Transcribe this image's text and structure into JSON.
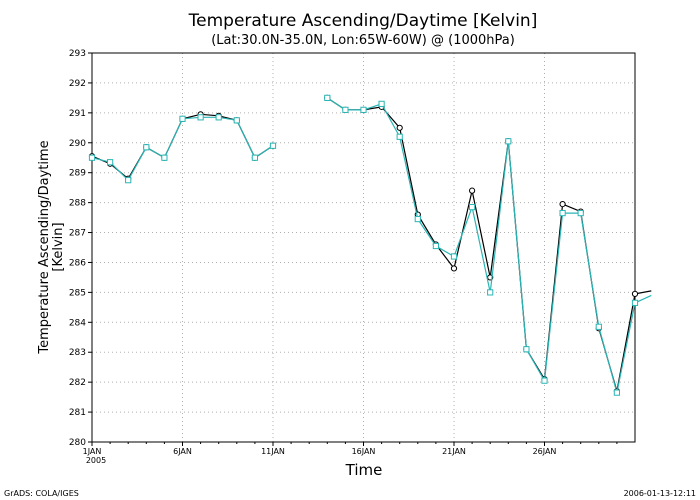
{
  "chart_data": {
    "type": "line",
    "title": "Temperature Ascending/Daytime [Kelvin]",
    "subtitle": "(Lat:30.0N-35.0N, Lon:65W-60W) @ (1000hPa)",
    "xlabel": "Time",
    "ylabel_line1": "Temperature Ascending/Daytime",
    "ylabel_line2": "[Kelvin]",
    "ylim": [
      280,
      293
    ],
    "yticks": [
      "280",
      "281",
      "282",
      "283",
      "284",
      "285",
      "286",
      "287",
      "288",
      "289",
      "290",
      "291",
      "292",
      "293"
    ],
    "xlim": [
      1,
      31
    ],
    "xticks": [
      {
        "x": 1,
        "label": "1JAN",
        "sublabel": "2005"
      },
      {
        "x": 6,
        "label": "6JAN",
        "sublabel": ""
      },
      {
        "x": 11,
        "label": "11JAN",
        "sublabel": ""
      },
      {
        "x": 16,
        "label": "16JAN",
        "sublabel": ""
      },
      {
        "x": 21,
        "label": "21JAN",
        "sublabel": ""
      },
      {
        "x": 26,
        "label": "26JAN",
        "sublabel": ""
      }
    ],
    "grid": true,
    "colors": {
      "series_black": "#000000",
      "series_cyan": "#2ab5b5",
      "grid": "#b0b0b0"
    },
    "series": [
      {
        "marker": "circle",
        "segments": [
          [
            [
              1,
              289.55
            ],
            [
              2,
              289.3
            ],
            [
              3,
              288.8
            ],
            [
              4,
              289.85
            ],
            [
              5,
              289.5
            ],
            [
              6,
              290.8
            ],
            [
              7,
              290.95
            ],
            [
              8,
              290.9
            ],
            [
              9,
              290.75
            ],
            [
              10,
              289.5
            ],
            [
              11,
              289.9
            ]
          ],
          [
            [
              14,
              291.5
            ],
            [
              15,
              291.1
            ],
            [
              16,
              291.1
            ],
            [
              17,
              291.2
            ],
            [
              18,
              290.5
            ],
            [
              19,
              287.6
            ],
            [
              20,
              286.6
            ],
            [
              21,
              285.8
            ],
            [
              22,
              288.4
            ],
            [
              23,
              285.5
            ],
            [
              24,
              290.05
            ],
            [
              25,
              283.1
            ],
            [
              26,
              282.1
            ],
            [
              27,
              287.95
            ],
            [
              28,
              287.7
            ],
            [
              29,
              283.8
            ],
            [
              30,
              281.7
            ],
            [
              31,
              284.95
            ],
            [
              31.9,
              285.05
            ]
          ]
        ]
      },
      {
        "marker": "square",
        "segments": [
          [
            [
              1,
              289.5
            ],
            [
              2,
              289.35
            ],
            [
              3,
              288.75
            ],
            [
              4,
              289.85
            ],
            [
              5,
              289.5
            ],
            [
              6,
              290.8
            ],
            [
              7,
              290.85
            ],
            [
              8,
              290.85
            ],
            [
              9,
              290.75
            ],
            [
              10,
              289.5
            ],
            [
              11,
              289.9
            ]
          ],
          [
            [
              14,
              291.5
            ],
            [
              15,
              291.1
            ],
            [
              16,
              291.1
            ],
            [
              17,
              291.3
            ],
            [
              18,
              290.2
            ],
            [
              19,
              287.45
            ],
            [
              20,
              286.55
            ],
            [
              21,
              286.2
            ],
            [
              22,
              287.85
            ],
            [
              23,
              285.0
            ],
            [
              24,
              290.05
            ],
            [
              25,
              283.1
            ],
            [
              26,
              282.05
            ],
            [
              27,
              287.65
            ],
            [
              28,
              287.65
            ],
            [
              29,
              283.85
            ],
            [
              30,
              281.65
            ],
            [
              31,
              284.65
            ],
            [
              31.9,
              284.9
            ]
          ]
        ]
      }
    ]
  },
  "footer": {
    "left": "GrADS: COLA/IGES",
    "right": "2006-01-13-12:11"
  }
}
